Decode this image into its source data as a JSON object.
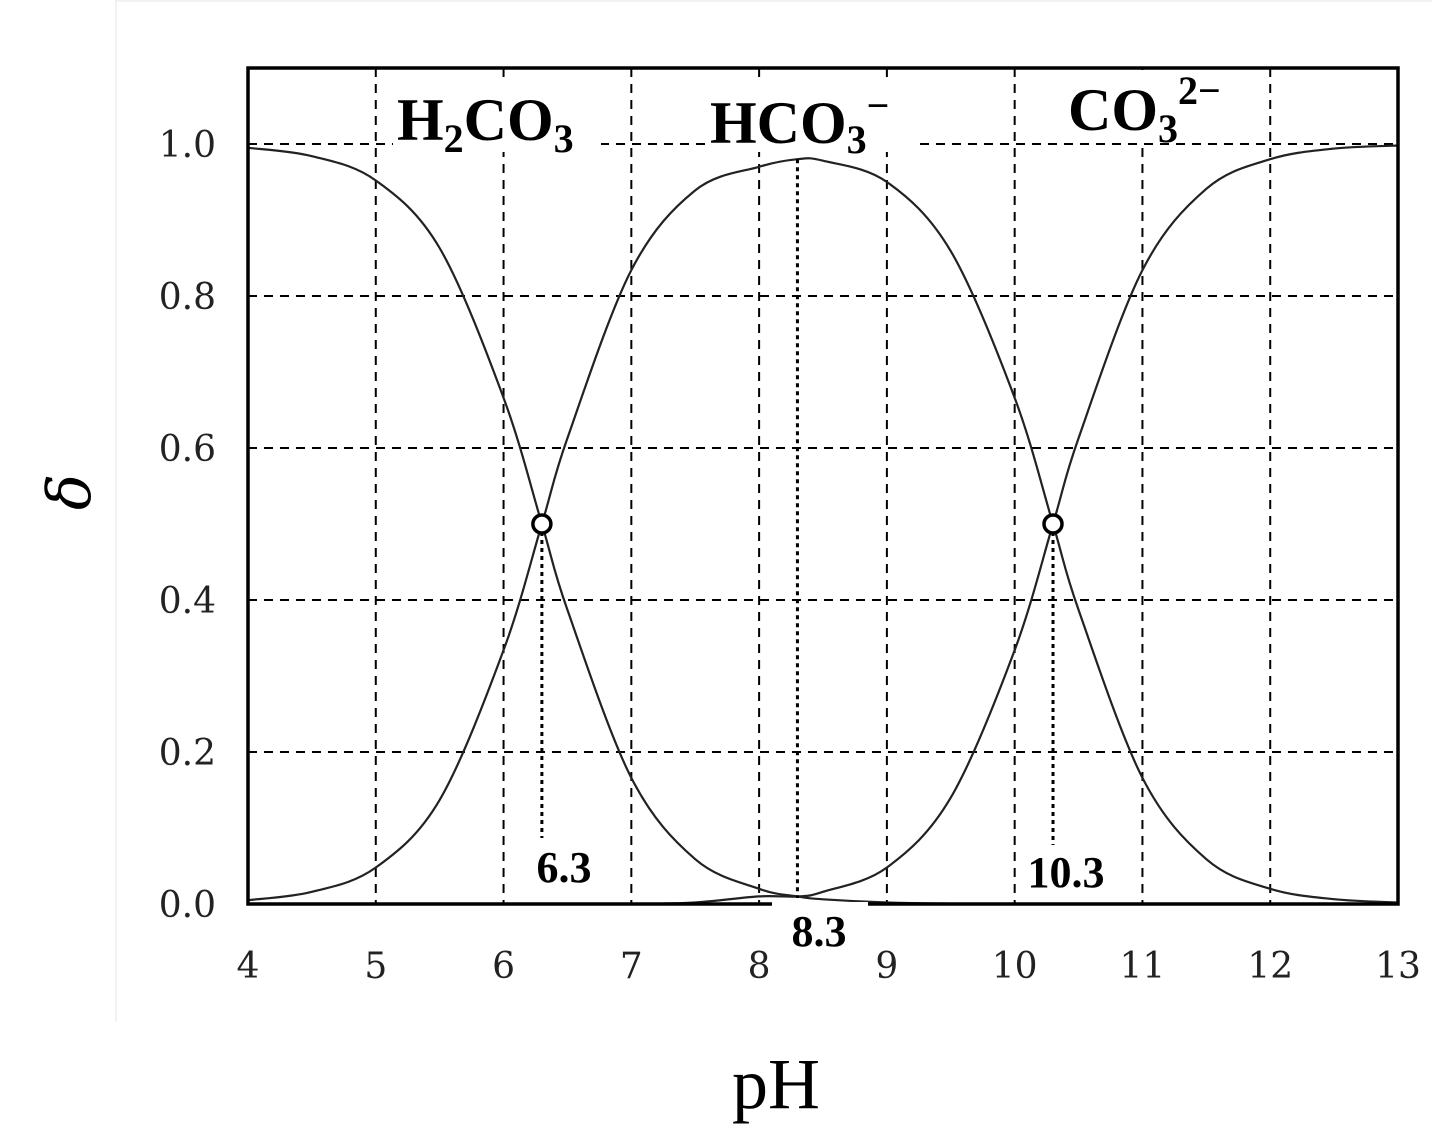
{
  "chart_data": {
    "type": "line",
    "xlabel": "pH",
    "ylabel": "δ",
    "xlim": [
      4,
      13
    ],
    "ylim": [
      0,
      1.1
    ],
    "x_ticks": [
      "4",
      "5",
      "6",
      "7",
      "8",
      "9",
      "10",
      "11",
      "12",
      "13"
    ],
    "y_ticks": [
      "0.0",
      "0.2",
      "0.4",
      "0.6",
      "0.8",
      "1.0"
    ],
    "grid": true,
    "pKa1": 6.3,
    "pKa2": 10.3,
    "x": [
      4.0,
      4.5,
      5.0,
      5.5,
      6.0,
      6.3,
      6.5,
      7.0,
      7.5,
      8.0,
      8.3,
      8.5,
      9.0,
      9.5,
      10.0,
      10.3,
      10.5,
      11.0,
      11.5,
      12.0,
      12.5,
      13.0
    ],
    "series": [
      {
        "name": "H2CO3",
        "values": [
          0.995,
          0.984,
          0.952,
          0.863,
          0.666,
          0.5,
          0.387,
          0.166,
          0.059,
          0.02,
          0.0099,
          0.0062,
          0.002,
          0.0006,
          0.0002,
          0.0001,
          0.0,
          0.0,
          0.0,
          0.0,
          0.0,
          0.0
        ]
      },
      {
        "name": "HCO3-",
        "values": [
          0.005,
          0.016,
          0.048,
          0.137,
          0.334,
          0.5,
          0.613,
          0.834,
          0.939,
          0.97,
          0.98,
          0.978,
          0.95,
          0.859,
          0.666,
          0.5,
          0.387,
          0.166,
          0.059,
          0.02,
          0.0063,
          0.002
        ]
      },
      {
        "name": "CO3 2-",
        "values": [
          0.0,
          0.0,
          0.0,
          0.0,
          0.0,
          0.0,
          0.0,
          0.0,
          0.002,
          0.01,
          0.0099,
          0.016,
          0.048,
          0.14,
          0.334,
          0.5,
          0.613,
          0.834,
          0.941,
          0.98,
          0.994,
          0.998
        ]
      }
    ],
    "species_labels": {
      "h2co3": {
        "base": "H",
        "sub1": "2",
        "mid": "CO",
        "sub2": "3"
      },
      "hco3": {
        "base": "HCO",
        "sub": "3",
        "sup": "−"
      },
      "co3": {
        "base": "CO",
        "sub": "3",
        "sup": "2−"
      }
    },
    "annotations": [
      {
        "text": "6.3",
        "x": 6.3,
        "y": 0.5
      },
      {
        "text": "8.3",
        "x": 8.3,
        "y": 0.98
      },
      {
        "text": "10.3",
        "x": 10.3,
        "y": 0.5
      }
    ]
  }
}
